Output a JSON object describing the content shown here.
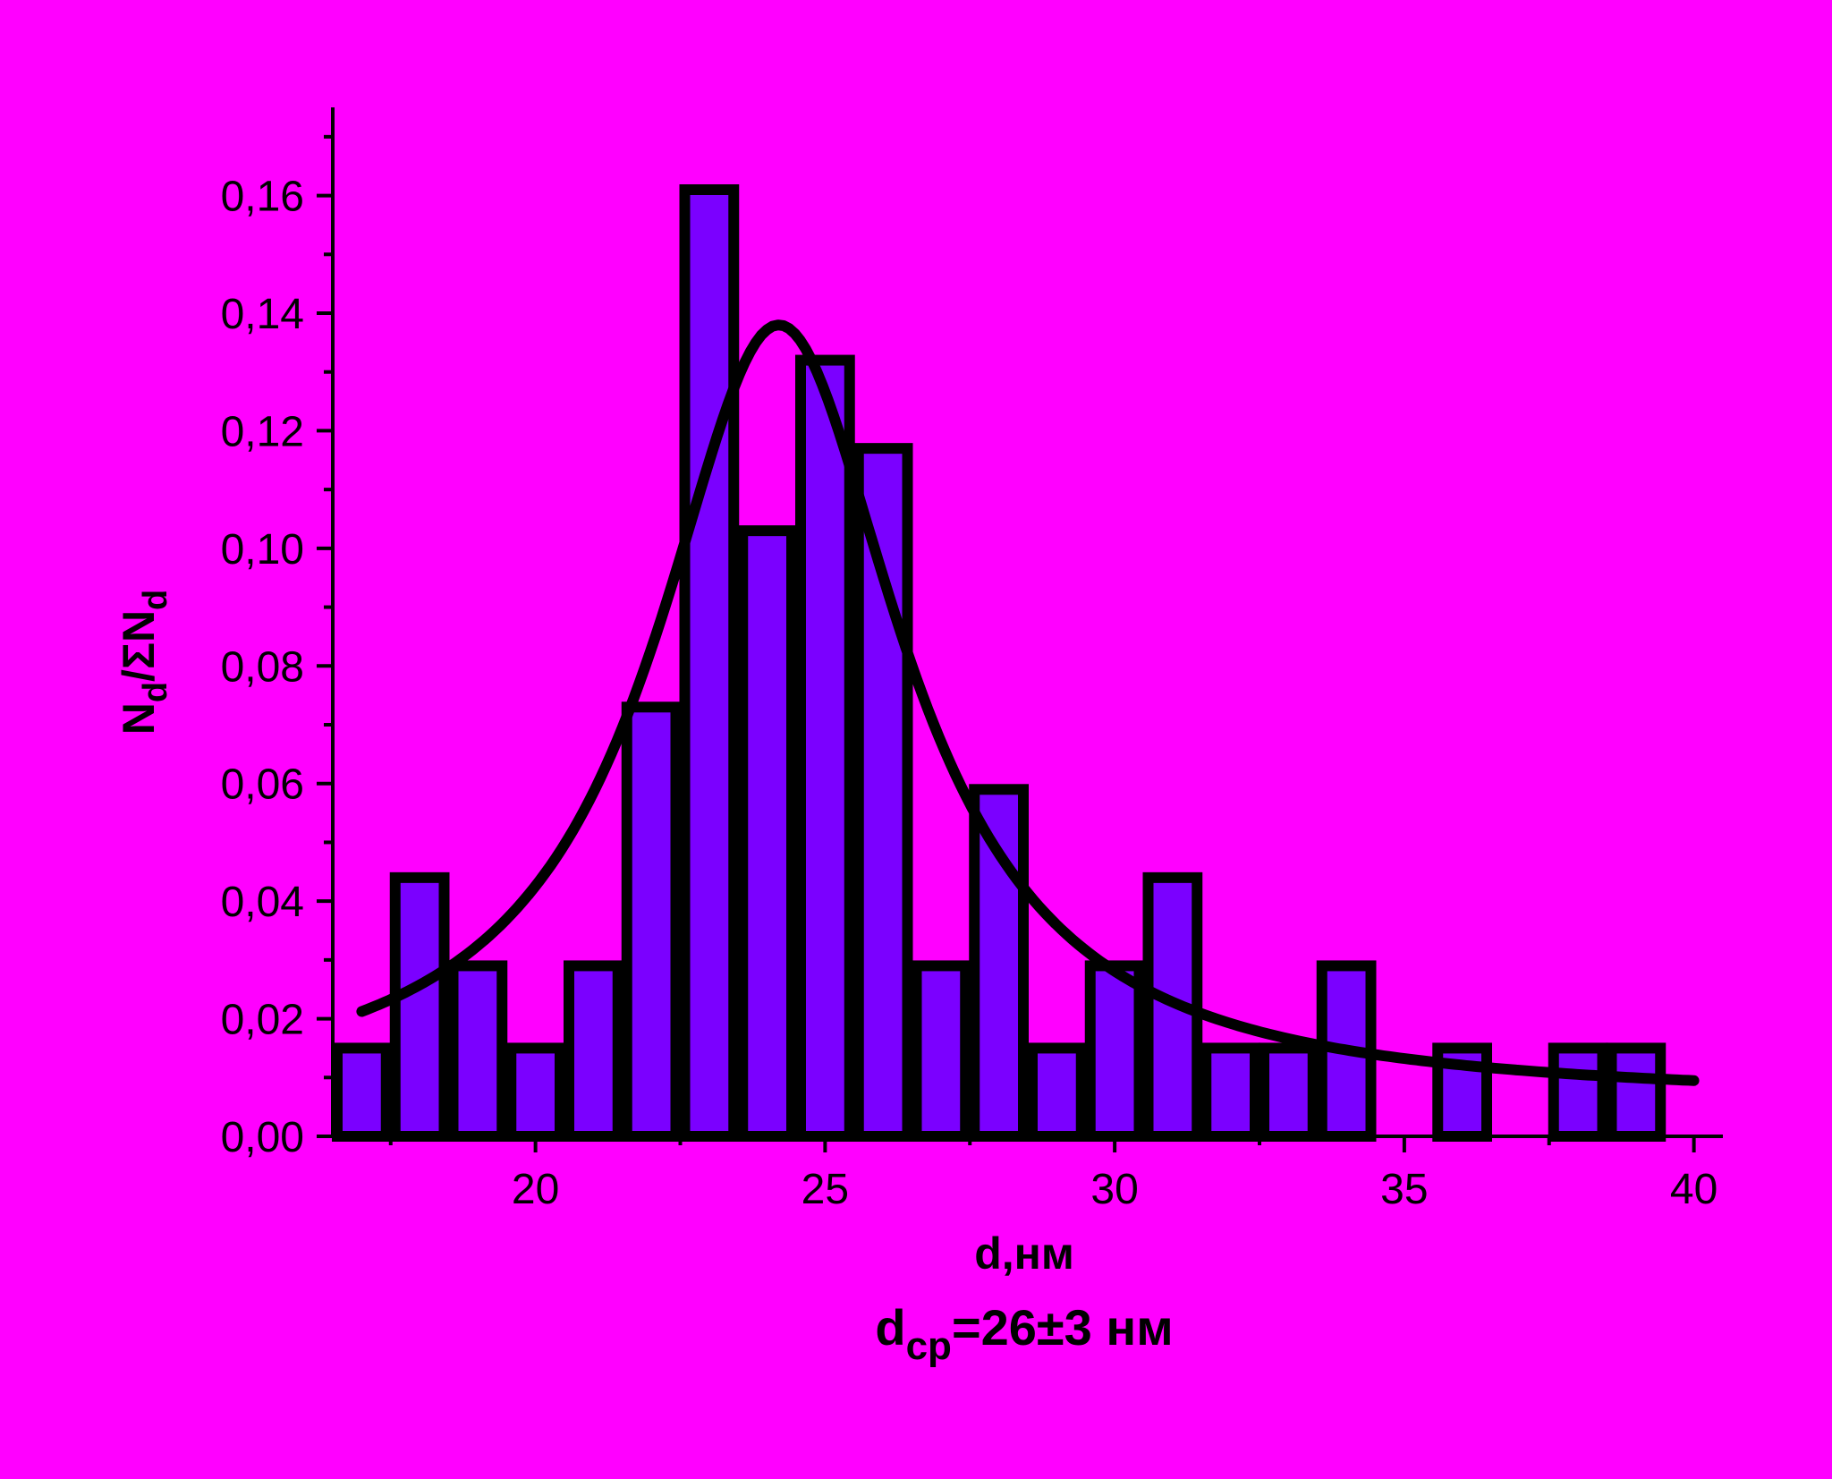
{
  "chart_data": {
    "type": "bar",
    "title": "",
    "xlabel": "d,нм",
    "ylabel": {
      "main": "N",
      "sub1": "d",
      "mid": "/ΣN",
      "sub2": "d"
    },
    "annotation": {
      "main": "d",
      "sub": "cp",
      "rest": "=26±3 нм"
    },
    "xlim": [
      16.5,
      40.5
    ],
    "ylim": [
      0,
      0.175
    ],
    "x_ticks": [
      20,
      25,
      30,
      35,
      40
    ],
    "x_tick_labels": [
      "20",
      "25",
      "30",
      "35",
      "40"
    ],
    "y_ticks": [
      0,
      0.02,
      0.04,
      0.06,
      0.08,
      0.1,
      0.12,
      0.14,
      0.16
    ],
    "y_tick_labels": [
      "0,00",
      "0,02",
      "0,04",
      "0,06",
      "0,08",
      "0,10",
      "0,12",
      "0,14",
      "0,16"
    ],
    "bin_width": 1,
    "bins": [
      {
        "x": 17,
        "value": 0.015
      },
      {
        "x": 18,
        "value": 0.044
      },
      {
        "x": 19,
        "value": 0.029
      },
      {
        "x": 20,
        "value": 0.015
      },
      {
        "x": 21,
        "value": 0.029
      },
      {
        "x": 22,
        "value": 0.073
      },
      {
        "x": 23,
        "value": 0.161
      },
      {
        "x": 24,
        "value": 0.103
      },
      {
        "x": 25,
        "value": 0.132
      },
      {
        "x": 26,
        "value": 0.117
      },
      {
        "x": 27,
        "value": 0.029
      },
      {
        "x": 28,
        "value": 0.059
      },
      {
        "x": 29,
        "value": 0.015
      },
      {
        "x": 30,
        "value": 0.029
      },
      {
        "x": 31,
        "value": 0.044
      },
      {
        "x": 32,
        "value": 0.015
      },
      {
        "x": 33,
        "value": 0.015
      },
      {
        "x": 34,
        "value": 0.029
      },
      {
        "x": 35,
        "value": 0
      },
      {
        "x": 36,
        "value": 0.015
      },
      {
        "x": 37,
        "value": 0
      },
      {
        "x": 38,
        "value": 0.015
      },
      {
        "x": 39,
        "value": 0.015
      }
    ],
    "fit": {
      "type": "lorentzian",
      "x0": 24.2,
      "y0": 0.006,
      "amplitude": 0.132,
      "hwhm": 2.6,
      "x_range": [
        17,
        40
      ]
    },
    "grid": false,
    "legend": "none"
  },
  "colors": {
    "background": "#ff00ff",
    "bar_fill": "#7b00ff",
    "stroke": "#000000"
  }
}
